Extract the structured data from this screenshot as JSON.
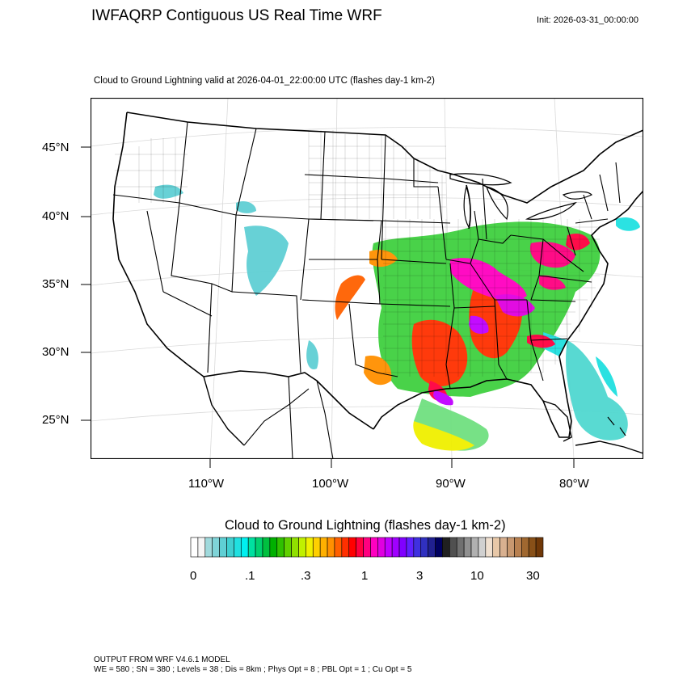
{
  "header": {
    "title": "IWFAQRP Contiguous US Real Time WRF",
    "init": "Init: 2026-03-31_00:00:00",
    "subtitle": "Cloud to Ground Lightning valid at 2026-04-01_22:00:00 UTC   (flashes day-1 km-2)"
  },
  "map": {
    "lat_labels": [
      "45°N",
      "40°N",
      "35°N",
      "30°N",
      "25°N"
    ],
    "lon_labels": [
      "110°W",
      "100°W",
      "90°W",
      "80°W"
    ],
    "colors": {
      "land": "#ffffff",
      "borders": "#000000",
      "grid": "#d9d9d9"
    }
  },
  "legend": {
    "title": "Cloud to Ground Lightning  (flashes day-1 km-2)",
    "labels": [
      "0",
      ".1",
      ".3",
      "1",
      "3",
      "10",
      "30"
    ],
    "colors": [
      "#ffffff",
      "#f5f5f5",
      "#9fd9dc",
      "#7fd4d8",
      "#5fcfd4",
      "#3fcfd0",
      "#20e0e0",
      "#00f0f0",
      "#00e0a0",
      "#00d070",
      "#00c040",
      "#00b000",
      "#30c000",
      "#60d000",
      "#90e000",
      "#c0f000",
      "#f0f000",
      "#ffd000",
      "#ffb000",
      "#ff9000",
      "#ff6000",
      "#ff3000",
      "#ff0000",
      "#ff0040",
      "#ff0080",
      "#ff00c0",
      "#e000e0",
      "#c000ff",
      "#a000ff",
      "#8000ff",
      "#6020ff",
      "#4030e0",
      "#3030c0",
      "#202090",
      "#000060",
      "#202020",
      "#505050",
      "#707070",
      "#909090",
      "#b0b0b0",
      "#d0d0d0",
      "#f0e0d0",
      "#e8c8a8",
      "#d8b090",
      "#c89870",
      "#b88050",
      "#a06830",
      "#885018",
      "#703808"
    ]
  },
  "footer": {
    "line1": "OUTPUT FROM WRF V4.6.1 MODEL",
    "line2": "WE = 580 ; SN = 380 ; Levels = 38 ; Dis = 8km ; Phys Opt = 8 ; PBL Opt = 1 ; Cu Opt = 5"
  }
}
